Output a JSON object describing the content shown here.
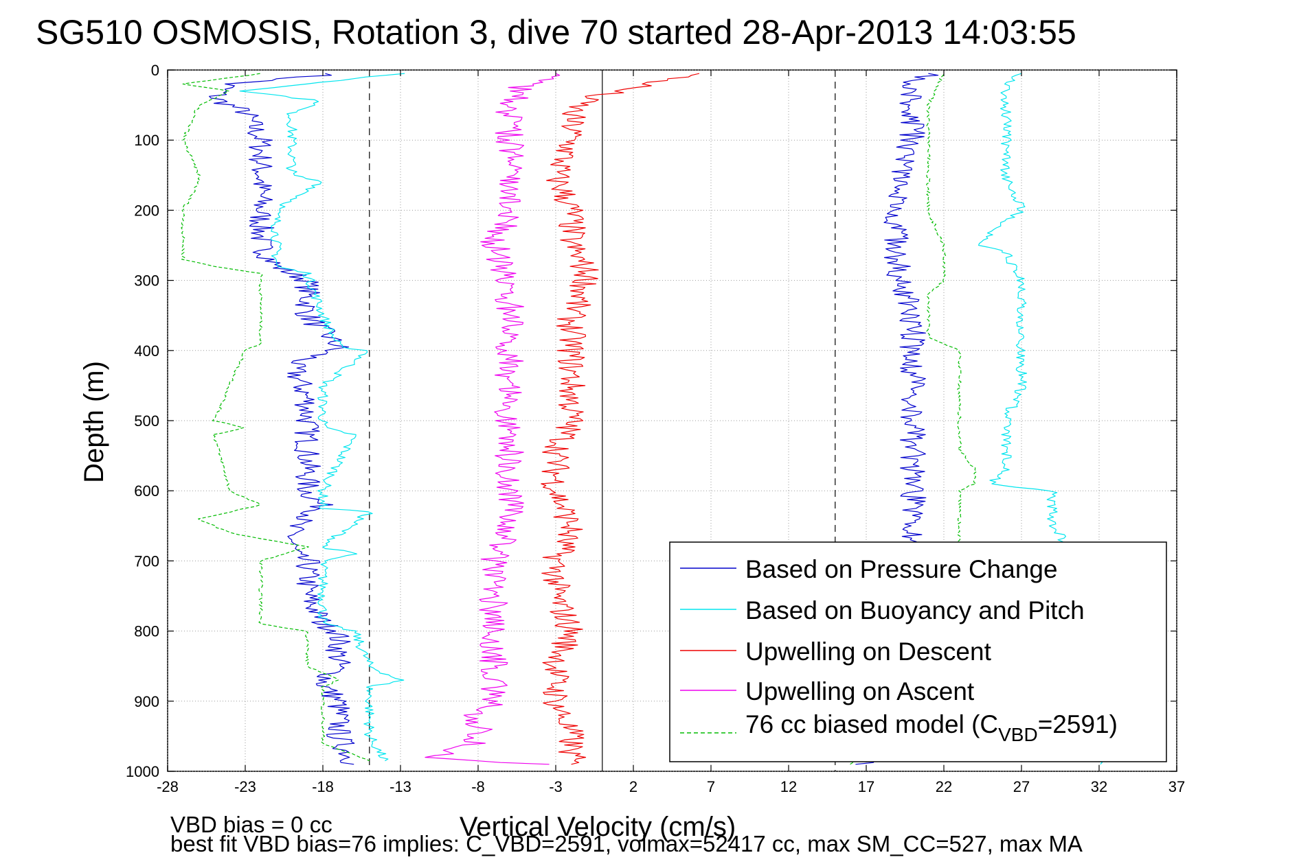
{
  "chart_data": {
    "type": "line",
    "title": "SG510 OSMOSIS, Rotation 3, dive 70 started 28-Apr-2013 14:03:55",
    "xlabel": "Vertical Velocity (cm/s)",
    "ylabel": "Depth (m)",
    "xlim": [
      -28,
      37
    ],
    "ylim": [
      1000,
      0
    ],
    "y_reversed": true,
    "xticks": [
      -28,
      -23,
      -18,
      -13,
      -8,
      -3,
      2,
      7,
      12,
      17,
      22,
      27,
      32,
      37
    ],
    "yticks": [
      0,
      100,
      200,
      300,
      400,
      500,
      600,
      700,
      800,
      900,
      1000
    ],
    "grid": "dotted",
    "legend_position": "lower-right",
    "reference_lines": [
      {
        "style": "solid",
        "x": 0
      },
      {
        "style": "dashed",
        "x": -15
      },
      {
        "style": "dashed",
        "x": 15
      }
    ],
    "series": [
      {
        "name": "Based on Pressure Change",
        "color": "#0000cc",
        "style": "solid",
        "descent": {
          "depth": [
            5,
            20,
            40,
            60,
            100,
            150,
            200,
            250,
            280,
            300,
            350,
            395,
            420,
            470,
            510,
            550,
            600,
            625,
            650,
            690,
            700,
            750,
            790,
            800,
            850,
            875,
            900,
            950,
            990
          ],
          "value": [
            -17,
            -24,
            -25,
            -23,
            -22,
            -22,
            -22,
            -22,
            -21,
            -19,
            -19,
            -17,
            -20,
            -19,
            -19,
            -19,
            -19,
            -18,
            -20,
            -20,
            -19,
            -19,
            -18,
            -17,
            -17,
            -18,
            -17,
            -17,
            -16
          ]
        },
        "ascent": {
          "depth": [
            990,
            960,
            920,
            880,
            850,
            800,
            750,
            700,
            680,
            650,
            620,
            600,
            570,
            560,
            520,
            500,
            450,
            400,
            350,
            300,
            280,
            250,
            200,
            150,
            100,
            50,
            20,
            5
          ],
          "value": [
            17,
            20,
            20,
            20,
            20,
            20,
            20,
            20,
            20,
            20,
            20,
            20,
            20,
            20,
            20,
            20,
            20,
            20,
            20,
            19,
            19,
            19,
            19,
            19,
            20,
            20,
            20,
            21
          ]
        }
      },
      {
        "name": "Based on Buoyancy and Pitch",
        "color": "#00e5ee",
        "style": "solid",
        "descent": {
          "depth": [
            5,
            30,
            45,
            60,
            100,
            150,
            160,
            200,
            280,
            290,
            350,
            395,
            400,
            450,
            510,
            520,
            600,
            625,
            630,
            680,
            690,
            700,
            790,
            800,
            850,
            870,
            880,
            950,
            985
          ],
          "value": [
            -13,
            -23,
            -18,
            -20,
            -20,
            -20,
            -18,
            -21,
            -21,
            -19,
            -18,
            -17,
            -15,
            -18,
            -18,
            -16,
            -18,
            -18,
            -15,
            -18,
            -16,
            -18,
            -18,
            -16,
            -15,
            -13,
            -15,
            -15,
            -14
          ]
        },
        "ascent": {
          "depth": [
            990,
            920,
            800,
            700,
            680,
            650,
            610,
            600,
            590,
            570,
            500,
            450,
            400,
            350,
            300,
            260,
            250,
            200,
            150,
            100,
            50,
            20,
            5
          ],
          "value": [
            32,
            29,
            29,
            29,
            30,
            29,
            29,
            29,
            25,
            26,
            26,
            27,
            27,
            27,
            27,
            26,
            24,
            27,
            26,
            26,
            26,
            26,
            27
          ]
        }
      },
      {
        "name": "Upwelling on Descent",
        "color": "#ee0000",
        "style": "solid",
        "descent": {
          "depth": [
            5,
            40,
            60,
            100,
            150,
            200,
            250,
            290,
            300,
            350,
            400,
            450,
            500,
            550,
            600,
            650,
            700,
            750,
            800,
            850,
            900,
            950,
            990
          ],
          "value": [
            6,
            -1,
            -2,
            -2,
            -3,
            -2,
            -2,
            -1,
            -1,
            -2,
            -2,
            -2,
            -2,
            -3,
            -3,
            -2,
            -3,
            -3,
            -2,
            -3,
            -3,
            -2,
            -2
          ]
        }
      },
      {
        "name": "Upwelling on Ascent",
        "color": "#ee00ee",
        "style": "solid",
        "ascent": {
          "depth": [
            990,
            980,
            960,
            920,
            900,
            850,
            800,
            750,
            700,
            650,
            600,
            560,
            500,
            450,
            400,
            350,
            300,
            250,
            200,
            150,
            100,
            50,
            20,
            5
          ],
          "value": [
            -4,
            -11,
            -8,
            -8,
            -7,
            -7,
            -7,
            -7,
            -7,
            -6,
            -6,
            -6,
            -6,
            -6,
            -6,
            -6,
            -6,
            -7,
            -6,
            -6,
            -6,
            -6,
            -5,
            -3
          ]
        }
      },
      {
        "name": "76 cc biased model (C_VBD=2591)",
        "name_main": "76 cc biased model (C",
        "name_sub": "VBD",
        "name_end": "=2591)",
        "color": "#00bb00",
        "style": "dashed",
        "descent": {
          "depth": [
            5,
            20,
            30,
            50,
            100,
            150,
            160,
            200,
            270,
            280,
            290,
            300,
            350,
            390,
            400,
            500,
            510,
            520,
            600,
            620,
            640,
            660,
            680,
            700,
            790,
            800,
            850,
            870,
            880,
            960,
            985
          ],
          "value": [
            -22,
            -27,
            -24,
            -26,
            -27,
            -26,
            -26,
            -27,
            -27,
            -25,
            -22,
            -22,
            -22,
            -22,
            -23,
            -25,
            -23,
            -25,
            -24,
            -22,
            -26,
            -24,
            -19,
            -22,
            -22,
            -19,
            -19,
            -17,
            -18,
            -18,
            -15
          ]
        },
        "ascent": {
          "depth": [
            990,
            900,
            800,
            700,
            650,
            600,
            590,
            570,
            540,
            500,
            450,
            400,
            380,
            320,
            300,
            250,
            200,
            150,
            100,
            50,
            5
          ],
          "value": [
            16,
            22,
            23,
            23,
            23,
            23,
            24,
            24,
            23,
            23,
            23,
            23,
            21,
            21,
            22,
            22,
            21,
            21,
            21,
            21,
            22
          ]
        }
      }
    ]
  },
  "footer": {
    "line1": "VBD bias = 0 cc",
    "line2": "best fit VBD bias=76 implies: C_VBD=2591, volmax=52417 cc, max SM_CC=527, max MA"
  }
}
